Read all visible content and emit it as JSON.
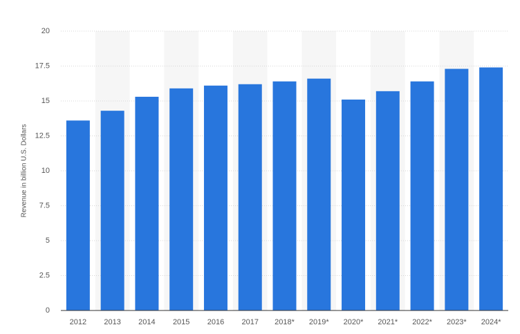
{
  "chart_data": {
    "type": "bar",
    "y_label": "Revenue in billion U.S. Dollars",
    "categories": [
      "2012",
      "2013",
      "2014",
      "2015",
      "2016",
      "2017",
      "2018*",
      "2019*",
      "2020*",
      "2021*",
      "2022*",
      "2023*",
      "2024*"
    ],
    "values": [
      13.6,
      14.3,
      15.3,
      15.9,
      16.1,
      16.2,
      16.4,
      16.6,
      15.1,
      15.7,
      16.4,
      17.3,
      17.4
    ],
    "color": "#2876dd",
    "ylim": [
      0,
      20
    ],
    "yticks": [
      0,
      2.5,
      5,
      7.5,
      10,
      12.5,
      15,
      17.5,
      20
    ],
    "grid": true
  }
}
